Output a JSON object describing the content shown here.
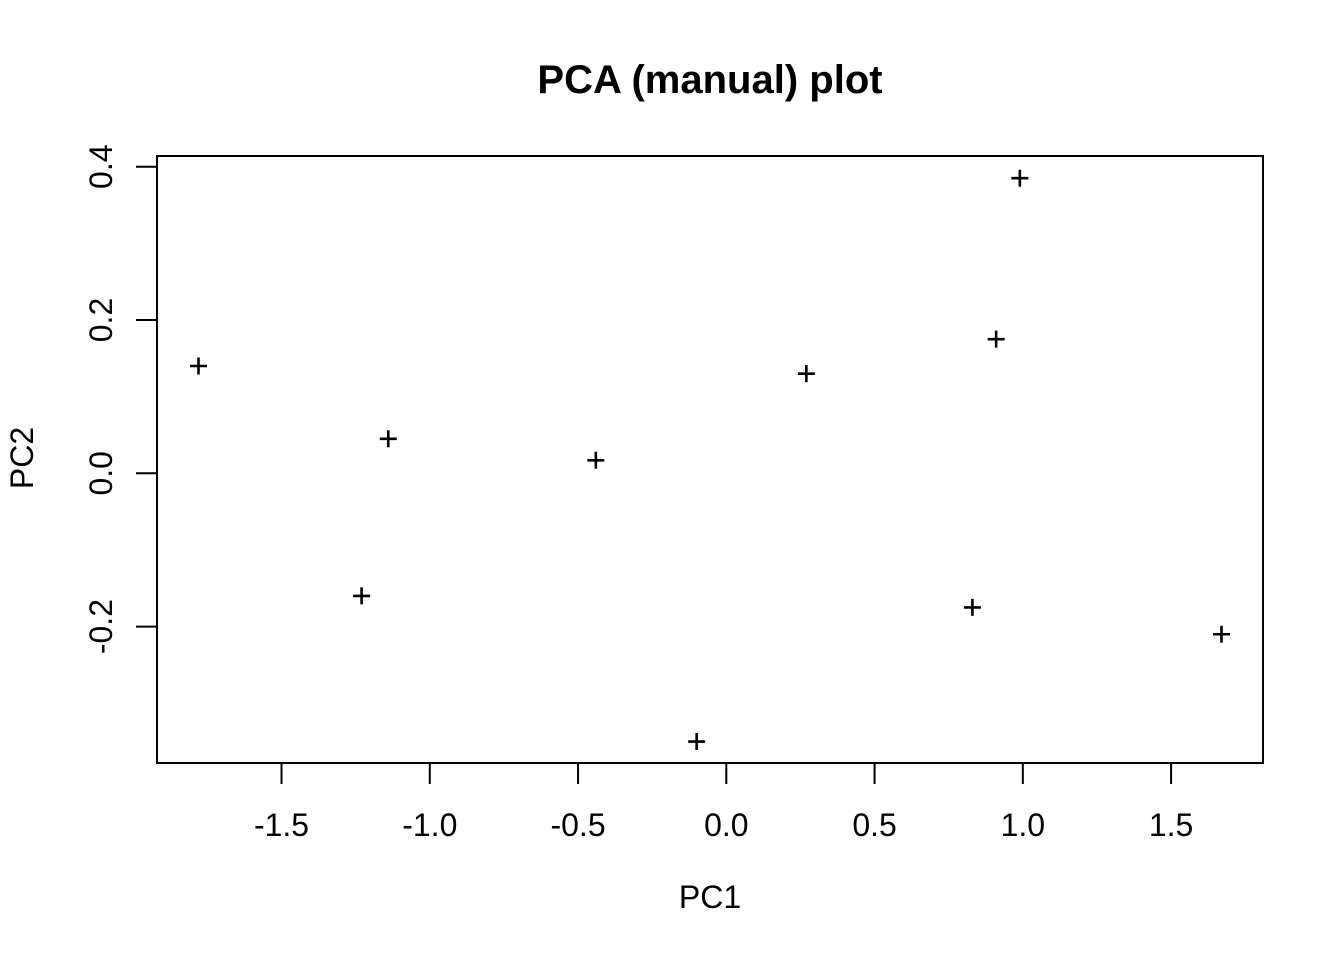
{
  "chart_data": {
    "type": "scatter",
    "title": "PCA (manual) plot",
    "xlabel": "PC1",
    "ylabel": "PC2",
    "marker": "plus",
    "grid": false,
    "legend_position": "none",
    "xlim": [
      -1.92,
      1.81
    ],
    "ylim": [
      -0.378,
      0.414
    ],
    "xticks": [
      {
        "value": -1.5,
        "label": "-1.5"
      },
      {
        "value": -1.0,
        "label": "-1.0"
      },
      {
        "value": -0.5,
        "label": "-0.5"
      },
      {
        "value": 0.0,
        "label": "0.0"
      },
      {
        "value": 0.5,
        "label": "0.5"
      },
      {
        "value": 1.0,
        "label": "1.0"
      },
      {
        "value": 1.5,
        "label": "1.5"
      }
    ],
    "yticks": [
      {
        "value": -0.2,
        "label": "-0.2"
      },
      {
        "value": 0.0,
        "label": "0.0"
      },
      {
        "value": 0.2,
        "label": "0.2"
      },
      {
        "value": 0.4,
        "label": "0.4"
      }
    ],
    "points": [
      {
        "x": -1.78,
        "y": 0.14
      },
      {
        "x": -1.23,
        "y": -0.16
      },
      {
        "x": -1.14,
        "y": 0.045
      },
      {
        "x": -0.44,
        "y": 0.017
      },
      {
        "x": -0.1,
        "y": -0.35
      },
      {
        "x": 0.27,
        "y": 0.13
      },
      {
        "x": 0.83,
        "y": -0.175
      },
      {
        "x": 0.91,
        "y": 0.175
      },
      {
        "x": 0.99,
        "y": 0.385
      },
      {
        "x": 1.67,
        "y": -0.21
      }
    ],
    "colors": {
      "foreground": "#000000",
      "background": "#ffffff"
    }
  }
}
